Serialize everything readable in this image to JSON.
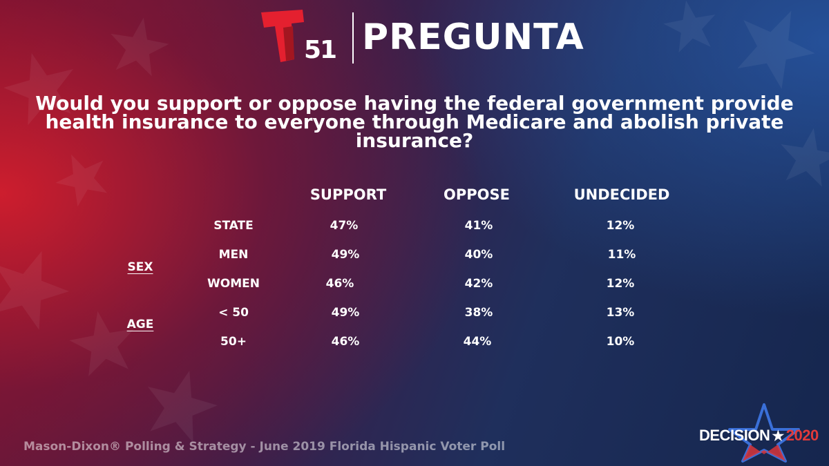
{
  "brand": {
    "channel_number": "51",
    "title": "PREGUNTA",
    "logo_color": "#e4202f"
  },
  "question": "Would you support or oppose having the federal government provide health insurance to everyone through Medicare and abolish private insurance?",
  "table": {
    "columns": [
      "SUPPORT",
      "OPPOSE",
      "UNDECIDED"
    ],
    "groups": [
      {
        "label": "SEX"
      },
      {
        "label": "AGE"
      }
    ],
    "rows": [
      {
        "label": "STATE",
        "support": "47%",
        "oppose": "41%",
        "undecided": "12%"
      },
      {
        "label": "MEN",
        "support": "49%",
        "oppose": "40%",
        "undecided": "11%"
      },
      {
        "label": "WOMEN",
        "support": "46%",
        "oppose": "42%",
        "undecided": "12%"
      },
      {
        "label": "< 50",
        "support": "49%",
        "oppose": "38%",
        "undecided": "13%"
      },
      {
        "label": "50+",
        "support": "46%",
        "oppose": "44%",
        "undecided": "10%"
      }
    ]
  },
  "source": "Mason-Dixon® Polling & Strategy - June 2019 Florida Hispanic Voter Poll",
  "decision_logo": {
    "word": "DECISION",
    "year": "2020",
    "star_color": "#3a6fd8",
    "year_color": "#e23a3a"
  }
}
